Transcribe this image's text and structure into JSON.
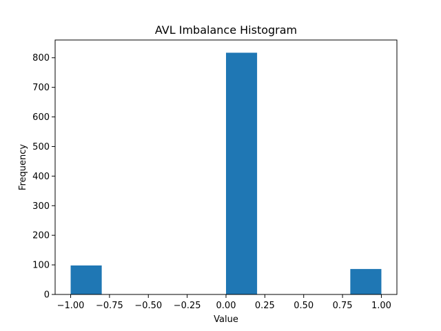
{
  "chart_data": {
    "type": "bar",
    "title": "AVL Imbalance Histogram",
    "xlabel": "Value",
    "ylabel": "Frequency",
    "xlim": [
      -1.1,
      1.1
    ],
    "ylim": [
      0,
      860
    ],
    "xticks": [
      -1.0,
      -0.75,
      -0.5,
      -0.25,
      0.0,
      0.25,
      0.5,
      0.75,
      1.0
    ],
    "xtick_labels": [
      "−1.00",
      "−0.75",
      "−0.50",
      "−0.25",
      "0.00",
      "0.25",
      "0.50",
      "0.75",
      "1.00"
    ],
    "yticks": [
      0,
      100,
      200,
      300,
      400,
      500,
      600,
      700,
      800
    ],
    "ytick_labels": [
      "0",
      "100",
      "200",
      "300",
      "400",
      "500",
      "600",
      "700",
      "800"
    ],
    "bins": [
      {
        "x0": -1.0,
        "x1": -0.8,
        "value": 98
      },
      {
        "x0": -0.8,
        "x1": -0.6,
        "value": 0
      },
      {
        "x0": -0.6,
        "x1": -0.4,
        "value": 0
      },
      {
        "x0": -0.4,
        "x1": -0.2,
        "value": 0
      },
      {
        "x0": -0.2,
        "x1": 0.0,
        "value": 0
      },
      {
        "x0": 0.0,
        "x1": 0.2,
        "value": 817
      },
      {
        "x0": 0.2,
        "x1": 0.4,
        "value": 0
      },
      {
        "x0": 0.4,
        "x1": 0.6,
        "value": 0
      },
      {
        "x0": 0.6,
        "x1": 0.8,
        "value": 0
      },
      {
        "x0": 0.8,
        "x1": 1.0,
        "value": 86
      }
    ],
    "bar_color": "#1f77b4",
    "grid": false,
    "legend": "none"
  }
}
